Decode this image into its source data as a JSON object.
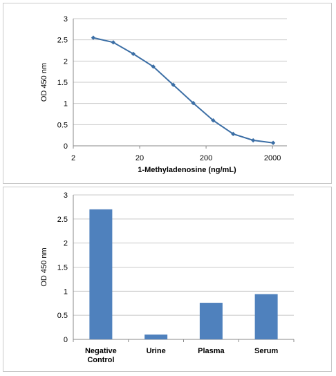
{
  "chart_data": [
    {
      "type": "line",
      "xscale": "log",
      "xlabel": "1-Methyladenosine (ng/mL)",
      "ylabel": "OD 450 nm",
      "xticks": [
        2,
        20,
        200,
        2000
      ],
      "xlim": [
        2,
        3300
      ],
      "ylim": [
        0,
        3
      ],
      "yticks": [
        0,
        0.5,
        1,
        1.5,
        2,
        2.5,
        3
      ],
      "grid": true,
      "series": [
        {
          "color": "#3b6ea5",
          "x": [
            4,
            8,
            16,
            32,
            64,
            128,
            256,
            512,
            1024,
            2048
          ],
          "y": [
            2.55,
            2.44,
            2.17,
            1.87,
            1.44,
            1.01,
            0.6,
            0.28,
            0.13,
            0.07
          ]
        }
      ]
    },
    {
      "type": "bar",
      "ylabel": "OD 450 nm",
      "categories": [
        "Negative Control",
        "Urine",
        "Plasma",
        "Serum"
      ],
      "category_lines": [
        [
          "Negative",
          "Control"
        ],
        [
          "Urine"
        ],
        [
          "Plasma"
        ],
        [
          "Serum"
        ]
      ],
      "values": [
        2.7,
        0.1,
        0.76,
        0.94
      ],
      "ylim": [
        0,
        3
      ],
      "yticks": [
        0,
        0.5,
        1,
        1.5,
        2,
        2.5,
        3
      ],
      "grid": true,
      "color": "#4f81bd"
    }
  ]
}
